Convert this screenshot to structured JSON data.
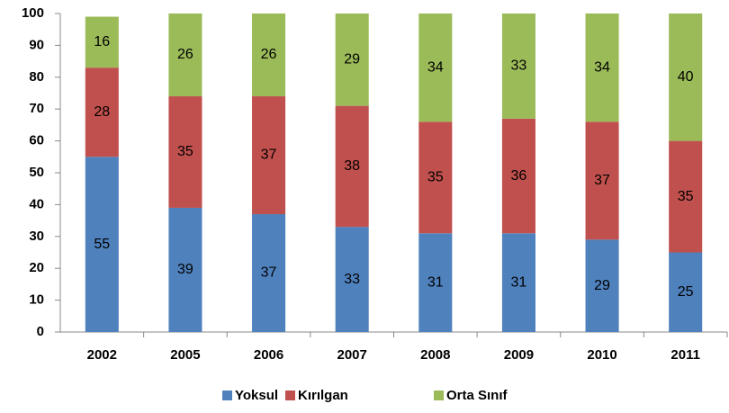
{
  "chart_data": {
    "type": "bar",
    "stacked": true,
    "categories": [
      "2002",
      "2005",
      "2006",
      "2007",
      "2008",
      "2009",
      "2010",
      "2011"
    ],
    "series": [
      {
        "name": "Yoksul",
        "color": "#4f81bd",
        "values": [
          55,
          39,
          37,
          33,
          31,
          31,
          29,
          25
        ]
      },
      {
        "name": "Kırılgan",
        "color": "#c0504d",
        "values": [
          28,
          35,
          37,
          38,
          35,
          36,
          37,
          35
        ]
      },
      {
        "name": "Orta Sınıf",
        "color": "#9bbb59",
        "values": [
          16,
          26,
          26,
          29,
          34,
          33,
          34,
          40
        ]
      }
    ],
    "ylim": [
      0,
      100
    ],
    "yticks": [
      0,
      10,
      20,
      30,
      40,
      50,
      60,
      70,
      80,
      90,
      100
    ],
    "grid": false,
    "legend": "bottom"
  }
}
